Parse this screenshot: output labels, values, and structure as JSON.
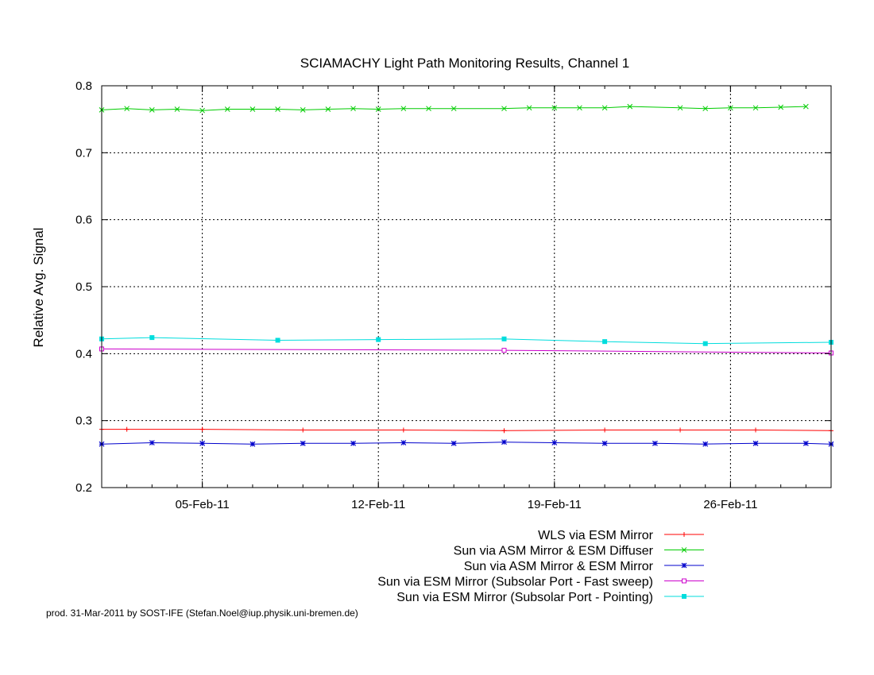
{
  "chart_data": {
    "type": "line",
    "title": "SCIAMACHY Light Path Monitoring Results, Channel 1",
    "xlabel": "",
    "ylabel": "Relative Avg. Signal",
    "x_type": "date",
    "xlim": [
      "2011-02-01",
      "2011-03-02"
    ],
    "ylim": [
      0.2,
      0.8
    ],
    "x_ticks": [
      "2011-02-05",
      "2011-02-12",
      "2011-02-19",
      "2011-02-26"
    ],
    "x_tick_labels": [
      "05-Feb-11",
      "12-Feb-11",
      "19-Feb-11",
      "26-Feb-11"
    ],
    "y_ticks": [
      0.2,
      0.3,
      0.4,
      0.5,
      0.6,
      0.7,
      0.8
    ],
    "y_tick_labels": [
      "0.2",
      "0.3",
      "0.4",
      "0.5",
      "0.6",
      "0.7",
      "0.8"
    ],
    "grid": true,
    "legend_position": "bottom-right",
    "series": [
      {
        "name": "WLS via ESM Mirror",
        "color": "#ff0000",
        "marker": "plus",
        "x": [
          "2011-02-01",
          "2011-02-02",
          "2011-02-05",
          "2011-02-09",
          "2011-02-13",
          "2011-02-17",
          "2011-02-21",
          "2011-02-24",
          "2011-02-27",
          "2011-03-02"
        ],
        "y": [
          0.287,
          0.287,
          0.287,
          0.286,
          0.286,
          0.285,
          0.286,
          0.286,
          0.286,
          0.285
        ]
      },
      {
        "name": "Sun via ASM Mirror & ESM Diffuser",
        "color": "#00cc00",
        "marker": "cross",
        "x": [
          "2011-02-01",
          "2011-02-02",
          "2011-02-03",
          "2011-02-04",
          "2011-02-05",
          "2011-02-06",
          "2011-02-07",
          "2011-02-08",
          "2011-02-09",
          "2011-02-10",
          "2011-02-11",
          "2011-02-12",
          "2011-02-13",
          "2011-02-14",
          "2011-02-15",
          "2011-02-17",
          "2011-02-18",
          "2011-02-19",
          "2011-02-20",
          "2011-02-21",
          "2011-02-22",
          "2011-02-24",
          "2011-02-25",
          "2011-02-26",
          "2011-02-27",
          "2011-02-28",
          "2011-03-01"
        ],
        "y": [
          0.764,
          0.766,
          0.764,
          0.765,
          0.763,
          0.765,
          0.765,
          0.765,
          0.764,
          0.765,
          0.766,
          0.765,
          0.766,
          0.766,
          0.766,
          0.766,
          0.767,
          0.767,
          0.767,
          0.767,
          0.769,
          0.767,
          0.766,
          0.767,
          0.767,
          0.768,
          0.769
        ]
      },
      {
        "name": "Sun via ASM Mirror & ESM Mirror",
        "color": "#0000cc",
        "marker": "star",
        "x": [
          "2011-02-01",
          "2011-02-03",
          "2011-02-05",
          "2011-02-07",
          "2011-02-09",
          "2011-02-11",
          "2011-02-13",
          "2011-02-15",
          "2011-02-17",
          "2011-02-19",
          "2011-02-21",
          "2011-02-23",
          "2011-02-25",
          "2011-02-27",
          "2011-03-01",
          "2011-03-02"
        ],
        "y": [
          0.265,
          0.267,
          0.266,
          0.265,
          0.266,
          0.266,
          0.267,
          0.266,
          0.268,
          0.267,
          0.266,
          0.266,
          0.265,
          0.266,
          0.266,
          0.265
        ]
      },
      {
        "name": "Sun via ESM Mirror (Subsolar Port - Fast sweep)",
        "color": "#cc00cc",
        "marker": "square",
        "x": [
          "2011-02-01",
          "2011-02-17",
          "2011-03-02"
        ],
        "y": [
          0.407,
          0.405,
          0.401
        ]
      },
      {
        "name": "Sun via ESM Mirror (Subsolar Port - Pointing)",
        "color": "#00dddd",
        "marker": "filled-square",
        "x": [
          "2011-02-01",
          "2011-02-03",
          "2011-02-08",
          "2011-02-12",
          "2011-02-17",
          "2011-02-21",
          "2011-02-25",
          "2011-03-02"
        ],
        "y": [
          0.422,
          0.424,
          0.42,
          0.421,
          0.422,
          0.418,
          0.415,
          0.417
        ]
      }
    ]
  },
  "footer_text": "prod. 31-Mar-2011 by SOST-IFE (Stefan.Noel@iup.physik.uni-bremen.de)"
}
